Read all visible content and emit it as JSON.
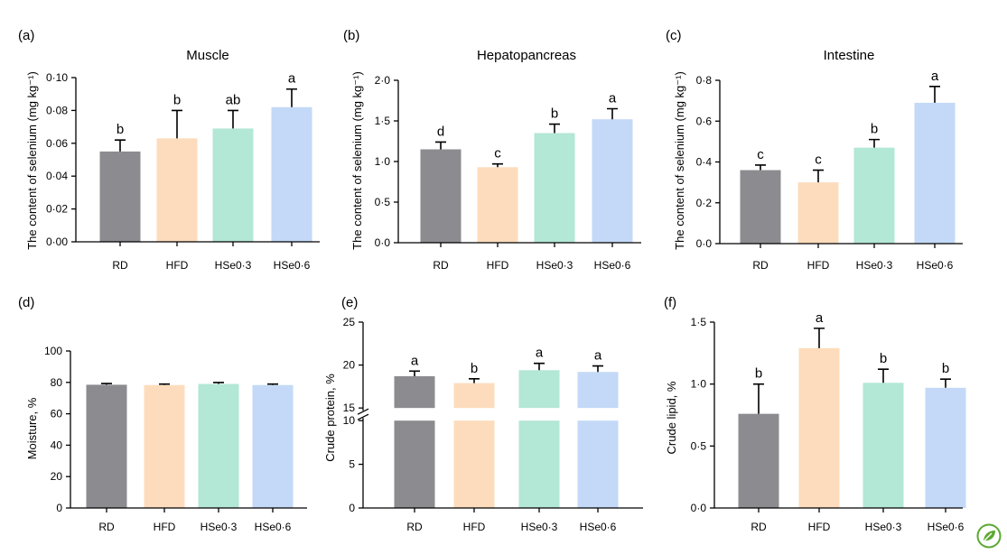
{
  "colors": {
    "RD": "#8c8c90",
    "HFD": "#fddcbd",
    "HSe0·3": "#b3e7d6",
    "HSe0·6": "#c3d9f7",
    "axis": "#000000",
    "logo": "#5aa832"
  },
  "logo_icon": "leaf-badge-icon",
  "chart_data": [
    {
      "panel": "(a)",
      "type": "bar",
      "title": "Muscle",
      "ylabel": "The content of selenium (mg kg⁻¹)",
      "categories": [
        "RD",
        "HFD",
        "HSe0·3",
        "HSe0·6"
      ],
      "values": [
        0.055,
        0.063,
        0.069,
        0.082
      ],
      "errors": [
        0.007,
        0.017,
        0.011,
        0.011
      ],
      "labels": [
        "b",
        "b",
        "ab",
        "a"
      ],
      "ylim": [
        0,
        0.1
      ],
      "yticks": [
        0,
        0.02,
        0.04,
        0.06,
        0.08,
        0.1
      ],
      "ytick_labels": [
        "0·00",
        "0·02",
        "0·04",
        "0·06",
        "0·08",
        "0·10"
      ]
    },
    {
      "panel": "(b)",
      "type": "bar",
      "title": "Hepatopancreas",
      "ylabel": "The content of selenium (mg kg⁻¹)",
      "categories": [
        "RD",
        "HFD",
        "HSe0·3",
        "HSe0·6"
      ],
      "values": [
        1.15,
        0.93,
        1.35,
        1.52
      ],
      "errors": [
        0.09,
        0.04,
        0.11,
        0.13
      ],
      "labels": [
        "d",
        "c",
        "b",
        "a"
      ],
      "ylim": [
        0,
        2.0
      ],
      "yticks": [
        0,
        0.5,
        1.0,
        1.5,
        2.0
      ],
      "ytick_labels": [
        "0·0",
        "0·5",
        "1·0",
        "1·5",
        "2·0"
      ]
    },
    {
      "panel": "(c)",
      "type": "bar",
      "title": "Intestine",
      "ylabel": "The content of selenium (mg kg⁻¹)",
      "categories": [
        "RD",
        "HFD",
        "HSe0·3",
        "HSe0·6"
      ],
      "values": [
        0.36,
        0.3,
        0.47,
        0.69
      ],
      "errors": [
        0.025,
        0.06,
        0.04,
        0.08
      ],
      "labels": [
        "c",
        "c",
        "b",
        "a"
      ],
      "ylim": [
        0,
        0.8
      ],
      "yticks": [
        0,
        0.2,
        0.4,
        0.6,
        0.8
      ],
      "ytick_labels": [
        "0·0",
        "0·2",
        "0·4",
        "0·6",
        "0·8"
      ]
    },
    {
      "panel": "(d)",
      "type": "bar",
      "title": "",
      "ylabel": "Moisture, %",
      "categories": [
        "RD",
        "HFD",
        "HSe0·3",
        "HSe0·6"
      ],
      "values": [
        78.5,
        78.3,
        79.0,
        78.3
      ],
      "errors": [
        0.8,
        0.6,
        0.9,
        0.6
      ],
      "labels": [
        "",
        "",
        "",
        ""
      ],
      "ylim": [
        0,
        100
      ],
      "yticks": [
        0,
        20,
        40,
        60,
        80,
        100
      ],
      "ytick_labels": [
        "0",
        "20",
        "40",
        "60",
        "80",
        "100"
      ]
    },
    {
      "panel": "(e)",
      "type": "bar",
      "title": "",
      "ylabel": "Crude protein, %",
      "categories": [
        "RD",
        "HFD",
        "HSe0·3",
        "HSe0·6"
      ],
      "values": [
        18.7,
        17.9,
        19.4,
        19.2
      ],
      "errors": [
        0.6,
        0.5,
        0.8,
        0.7
      ],
      "labels": [
        "a",
        "b",
        "a",
        "a"
      ],
      "ylim": [
        0,
        25
      ],
      "axis_break": [
        10,
        15
      ],
      "yticks": [
        0,
        5,
        10,
        15,
        20,
        25
      ],
      "ytick_labels": [
        "0",
        "5",
        "10",
        "15",
        "20",
        "25"
      ]
    },
    {
      "panel": "(f)",
      "type": "bar",
      "title": "",
      "ylabel": "Crude lipid, %",
      "categories": [
        "RD",
        "HFD",
        "HSe0·3",
        "HSe0·6"
      ],
      "values": [
        0.76,
        1.29,
        1.01,
        0.97
      ],
      "errors": [
        0.24,
        0.16,
        0.11,
        0.07
      ],
      "labels": [
        "b",
        "a",
        "b",
        "b"
      ],
      "ylim": [
        0,
        1.5
      ],
      "yticks": [
        0,
        0.5,
        1.0,
        1.5
      ],
      "ytick_labels": [
        "0·0",
        "0·5",
        "1·0",
        "1·5"
      ]
    }
  ]
}
